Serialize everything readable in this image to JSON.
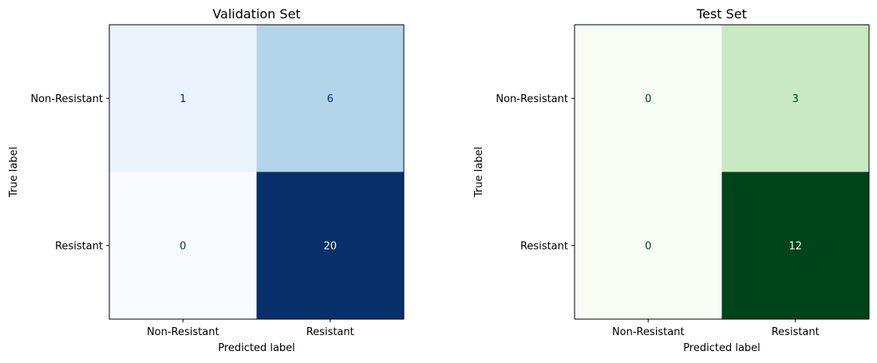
{
  "chart_data": [
    {
      "type": "heatmap",
      "title": "Validation Set",
      "xlabel": "Predicted label",
      "ylabel": "True label",
      "x_categories": [
        "Non-Resistant",
        "Resistant"
      ],
      "y_categories": [
        "Non-Resistant",
        "Resistant"
      ],
      "values": [
        [
          1,
          6
        ],
        [
          0,
          20
        ]
      ],
      "colormap": "Blues",
      "cell_colors": [
        [
          "#eaf2fb",
          "#b4d4e9"
        ],
        [
          "#f7fbff",
          "#08306b"
        ]
      ],
      "text_colors": [
        [
          "#08306b",
          "#08306b"
        ],
        [
          "#08306b",
          "#f7fbff"
        ]
      ],
      "colorbar": false
    },
    {
      "type": "heatmap",
      "title": "Test Set",
      "xlabel": "Predicted label",
      "ylabel": "True label",
      "x_categories": [
        "Non-Resistant",
        "Resistant"
      ],
      "y_categories": [
        "Non-Resistant",
        "Resistant"
      ],
      "values": [
        [
          0,
          3
        ],
        [
          0,
          12
        ]
      ],
      "colormap": "Greens",
      "cell_colors": [
        [
          "#f7fcf5",
          "#c8e9c1"
        ],
        [
          "#f7fcf5",
          "#00441b"
        ]
      ],
      "text_colors": [
        [
          "#00441b",
          "#00441b"
        ],
        [
          "#00441b",
          "#f7fcf5"
        ]
      ],
      "colorbar": false
    }
  ]
}
